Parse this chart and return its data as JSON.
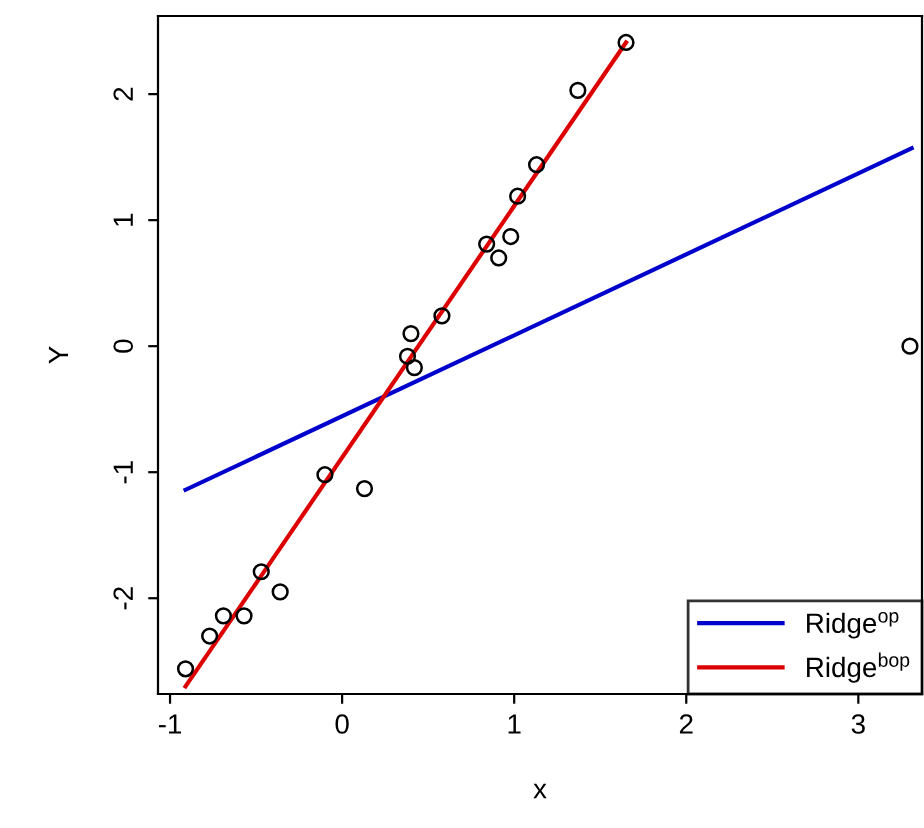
{
  "chart_data": {
    "type": "scatter",
    "xlabel": "x",
    "ylabel": "Y",
    "xlim": [
      -1.07,
      3.37
    ],
    "ylim": [
      -2.76,
      2.62
    ],
    "xticks": [
      -1,
      0,
      1,
      2,
      3
    ],
    "yticks": [
      -2,
      -1,
      0,
      1,
      2
    ],
    "grid": false,
    "legend": "bottom right",
    "series": [
      {
        "marker": "circle",
        "color": "#000000",
        "x": [
          -0.91,
          -0.77,
          -0.69,
          -0.57,
          -0.47,
          -0.36,
          -0.1,
          0.13,
          0.38,
          0.42,
          0.4,
          0.58,
          0.84,
          0.91,
          0.98,
          1.02,
          1.13,
          1.37,
          1.65,
          3.3
        ],
        "values": [
          -2.56,
          -2.3,
          -2.14,
          -2.14,
          -1.79,
          -1.95,
          -1.02,
          -1.13,
          -0.08,
          -0.17,
          0.1,
          0.24,
          0.81,
          0.7,
          0.87,
          1.19,
          1.44,
          2.03,
          2.41,
          0.0
        ]
      },
      {
        "type": "line",
        "name": "Ridge$^{op}$",
        "color": "#0000cc",
        "x": [
          -0.91,
          3.31
        ],
        "values": [
          -1.14,
          1.57
        ]
      },
      {
        "type": "line",
        "name": "Ridge$^{bop}$",
        "color": "#dd0000",
        "x": [
          -0.91,
          1.65
        ],
        "values": [
          -2.7,
          2.41
        ]
      }
    ]
  }
}
